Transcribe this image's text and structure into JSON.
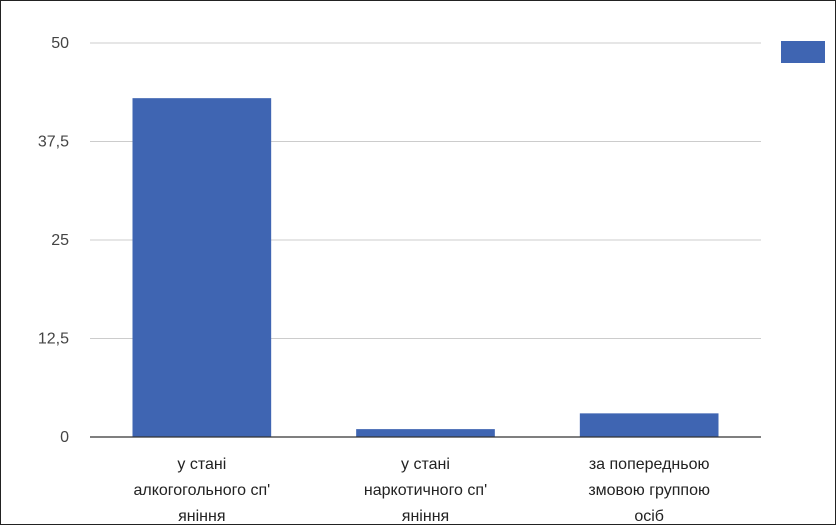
{
  "chart_data": {
    "type": "bar",
    "title": "",
    "xlabel": "",
    "ylabel": "",
    "categories": [
      [
        "у стані",
        "алкогогольного сп'",
        "яніння"
      ],
      [
        "у стані",
        "наркотичного сп'",
        "яніння"
      ],
      [
        "за попередньою",
        "змовою группою",
        "осіб"
      ]
    ],
    "values": [
      43,
      1,
      3
    ],
    "ylim": [
      0,
      50
    ],
    "yticks": [
      "0",
      "12,5",
      "25",
      "37,5",
      "50"
    ],
    "ytick_values": [
      0,
      12.5,
      25,
      37.5,
      50
    ],
    "grid": true,
    "legend": {
      "placement": "top-right",
      "entries": [
        ""
      ]
    },
    "colors": {
      "bar": "#3F65B2",
      "grid": "#CCCCCC",
      "axis": "#333333"
    }
  }
}
